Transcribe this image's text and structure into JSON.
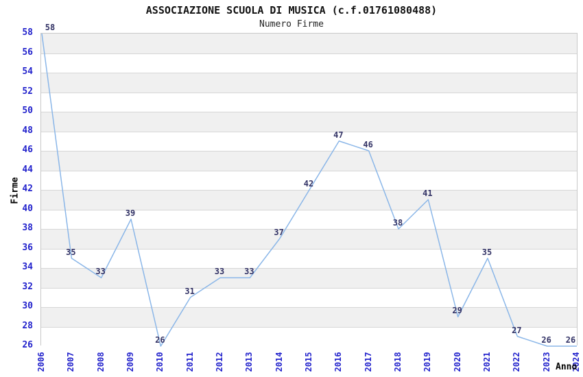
{
  "chart": {
    "title": "ASSOCIAZIONE SCUOLA DI MUSICA (c.f.01761080488)",
    "subtitle": "Numero Firme",
    "ylabel": "Firme",
    "xlabel": "Anno"
  },
  "chart_data": {
    "type": "line",
    "title": "ASSOCIAZIONE SCUOLA DI MUSICA (c.f.01761080488)",
    "subtitle": "Numero Firme",
    "xlabel": "Anno",
    "ylabel": "Firme",
    "categories": [
      "2006",
      "2007",
      "2008",
      "2009",
      "2010",
      "2011",
      "2012",
      "2013",
      "2014",
      "2015",
      "2016",
      "2017",
      "2018",
      "2019",
      "2020",
      "2021",
      "2022",
      "2023",
      "2024"
    ],
    "series": [
      {
        "name": "Numero Firme",
        "values": [
          58,
          35,
          33,
          39,
          26,
          31,
          33,
          33,
          37,
          42,
          47,
          46,
          38,
          41,
          29,
          35,
          27,
          26,
          26
        ]
      }
    ],
    "ylim": [
      26,
      58
    ],
    "ytick_step": 2,
    "grid": "alternating-horizontal-bands",
    "legend_position": "none",
    "data_labels_shown": true,
    "colors": {
      "line": "#8ab6e8",
      "axis_tick_text": "#2222cc",
      "data_label_text": "#333366",
      "band_gray": "#f0f0f0",
      "band_separator": "#d6d6d6",
      "plot_border": "#c8c8c8",
      "title_text": "#111111"
    }
  }
}
